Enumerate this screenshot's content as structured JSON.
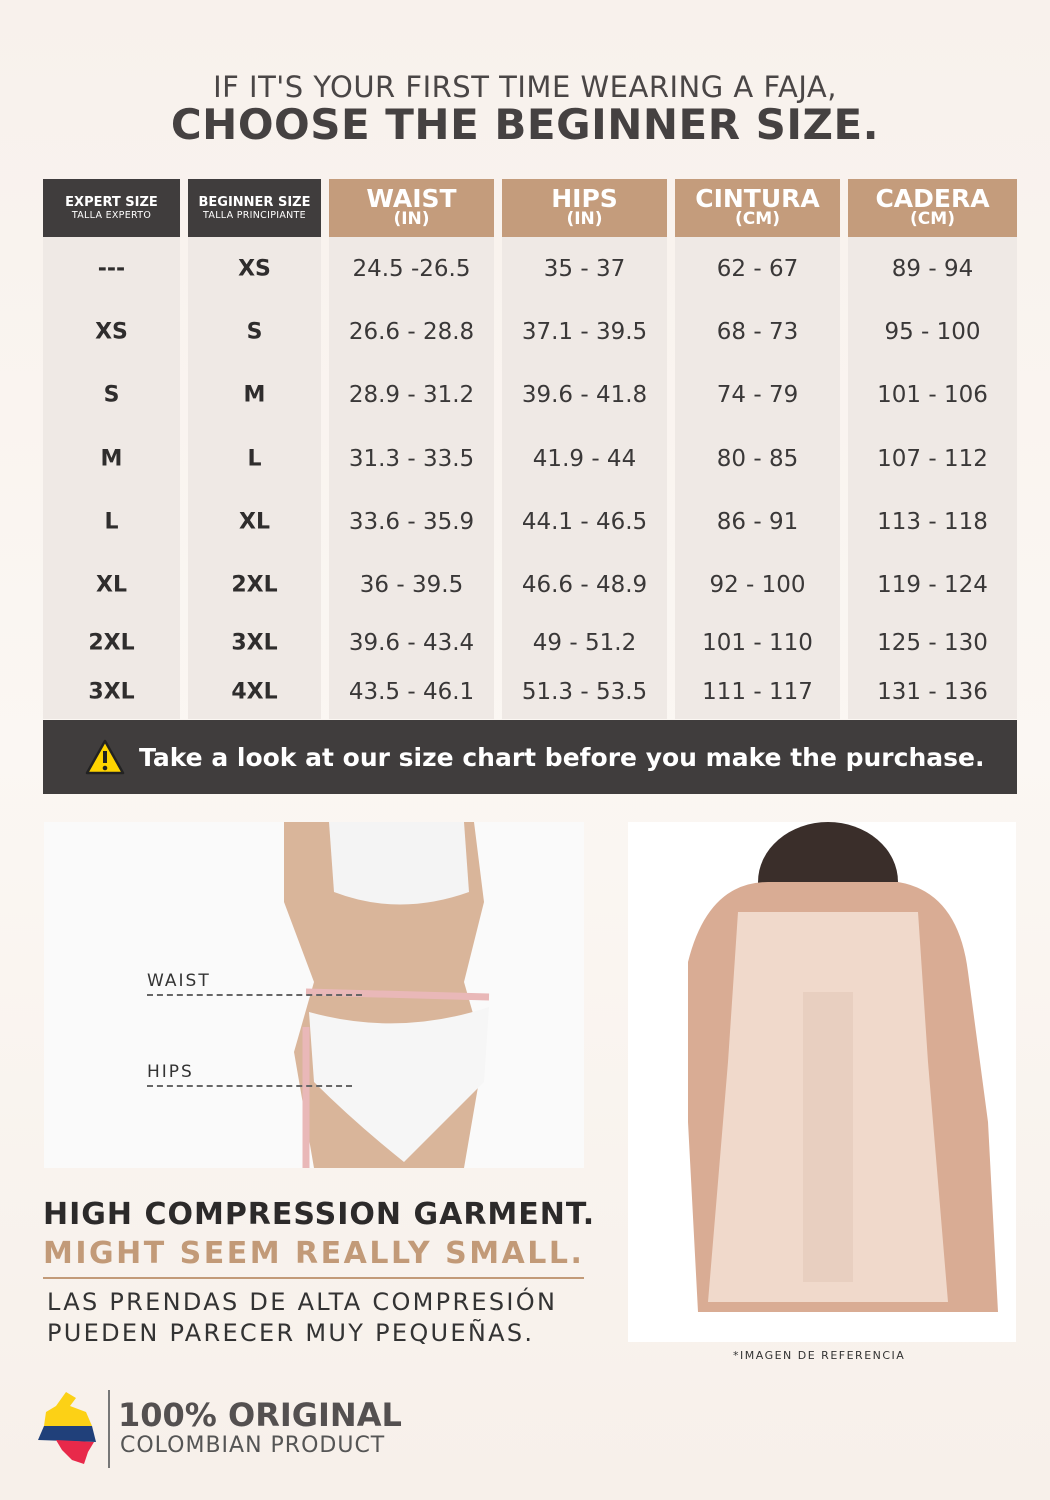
{
  "heading": {
    "line1": "IF IT'S YOUR FIRST TIME WEARING A FAJA,",
    "line2": "CHOOSE THE BEGINNER SIZE."
  },
  "table": {
    "headers": [
      {
        "title": "EXPERT SIZE",
        "sub": "TALLA EXPERTO"
      },
      {
        "title": "BEGINNER SIZE",
        "sub": "TALLA PRINCIPIANTE"
      },
      {
        "title": "WAIST",
        "sub": "(IN)"
      },
      {
        "title": "HIPS",
        "sub": "(IN)"
      },
      {
        "title": "CINTURA",
        "sub": "(CM)"
      },
      {
        "title": "CADERA",
        "sub": "(CM)"
      }
    ],
    "rows": [
      [
        "---",
        "XS",
        "24.5 -26.5",
        "35 - 37",
        "62 - 67",
        "89 - 94"
      ],
      [
        "XS",
        "S",
        "26.6 - 28.8",
        "37.1 - 39.5",
        "68 - 73",
        "95 - 100"
      ],
      [
        "S",
        "M",
        "28.9 - 31.2",
        "39.6 - 41.8",
        "74 - 79",
        "101 - 106"
      ],
      [
        "M",
        "L",
        "31.3 - 33.5",
        "41.9 - 44",
        "80 - 85",
        "107 - 112"
      ],
      [
        "L",
        "XL",
        "33.6 - 35.9",
        "44.1 - 46.5",
        "86 - 91",
        "113 - 118"
      ],
      [
        "XL",
        "2XL",
        "36 - 39.5",
        "46.6 - 48.9",
        "92 - 100",
        "119 - 124"
      ],
      [
        "2XL",
        "3XL",
        "39.6 - 43.4",
        "49 - 51.2",
        "101 - 110",
        "125 - 130"
      ],
      [
        "3XL",
        "4XL",
        "43.5 - 46.1",
        "51.3 - 53.5",
        "111 - 117",
        "131 - 136"
      ]
    ]
  },
  "banner": {
    "icon": "warning-icon",
    "text": "Take a look at our size chart before you make the purchase."
  },
  "photo_left": {
    "waist_label": "WAIST",
    "hips_label": "HIPS"
  },
  "photo_right": {
    "caption": "*IMAGEN DE REFERENCIA"
  },
  "compression": {
    "line1": "HIGH COMPRESSION GARMENT.",
    "line2": "MIGHT SEEM REALLY SMALL.",
    "es1": "LAS PRENDAS DE ALTA COMPRESIÓN",
    "es2": "PUEDEN  PARECER  MUY  PEQUEÑAS."
  },
  "footer": {
    "title": "100% ORIGINAL",
    "subtitle": "COLOMBIAN PRODUCT"
  },
  "colors": {
    "dark": "#403d3d",
    "tan": "#c49c7c",
    "accent_text": "#c29a78",
    "flag_yellow": "#fcd116",
    "flag_blue": "#20407a",
    "flag_red": "#e8294a"
  }
}
